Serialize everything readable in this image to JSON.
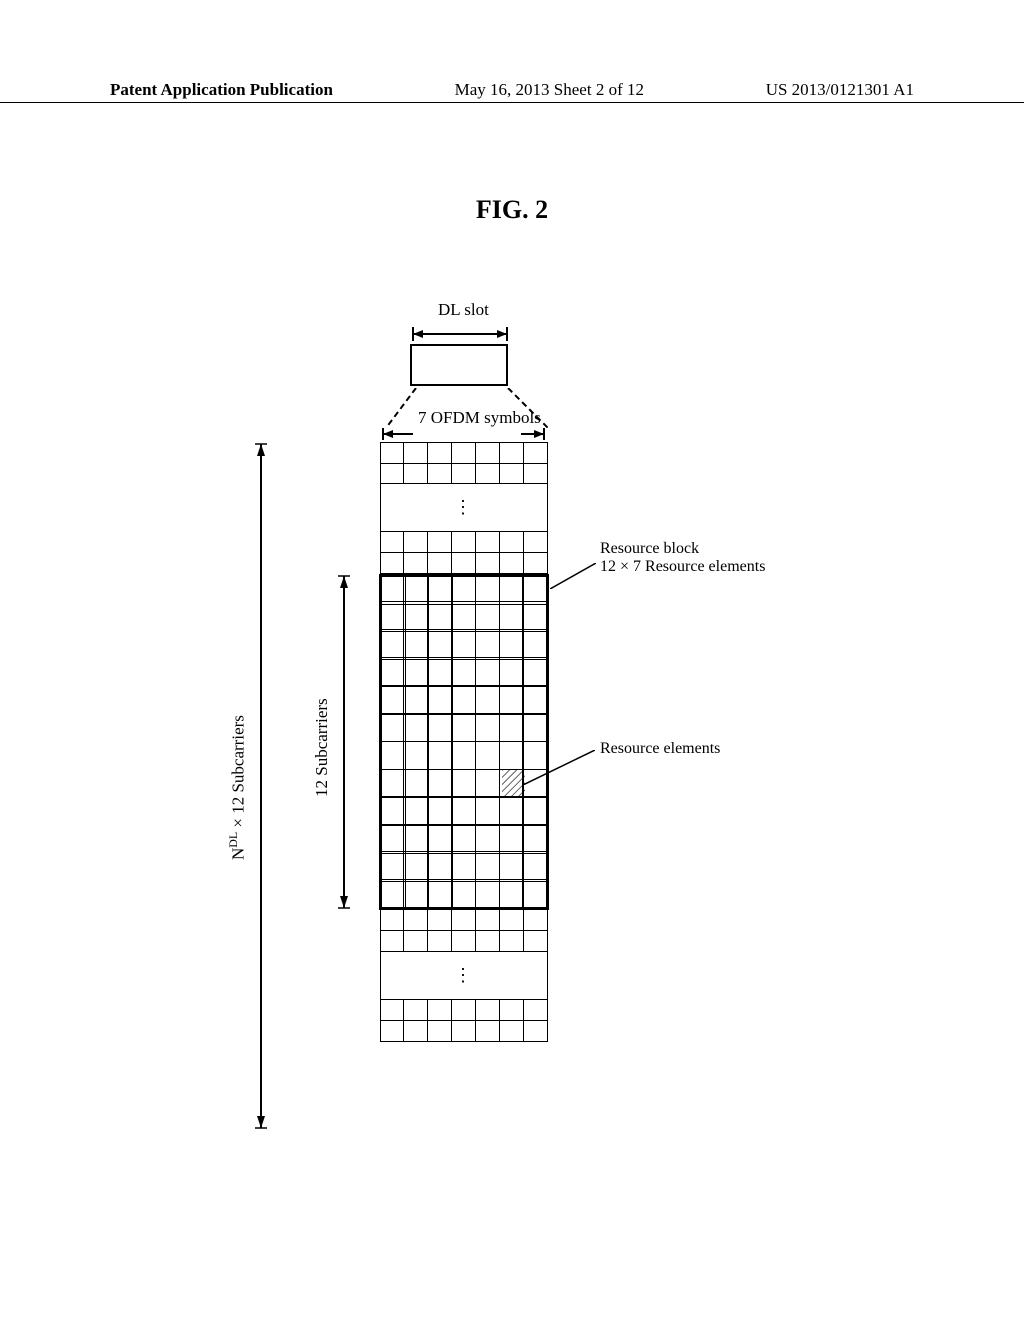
{
  "header": {
    "left": "Patent Application Publication",
    "center": "May 16, 2013  Sheet 2 of 12",
    "right": "US 2013/0121301 A1"
  },
  "figure": {
    "title": "FIG. 2",
    "dlslot_label": "DL slot",
    "ofdm_label": "7 OFDM symbols",
    "outer_vlabel_html": "N<sup>DL</sup> × 12  Subcarriers",
    "inner_vlabel": "12  Subcarriers",
    "rb_label_line1": "Resource block",
    "rb_label_line2": "12 × 7 Resource elements",
    "re_label": "Resource elements",
    "ellipsis": "⋮"
  },
  "grid": {
    "cols": 7,
    "rb_rows": 12,
    "top_rows": 2,
    "mid_rows": 2,
    "bottom_gap_top_rows": 2,
    "bottom_rows": 2,
    "hatched_cell": {
      "row": 7,
      "col": 5
    }
  },
  "style": {
    "stroke": "#000000",
    "hatch_spacing": 4
  }
}
